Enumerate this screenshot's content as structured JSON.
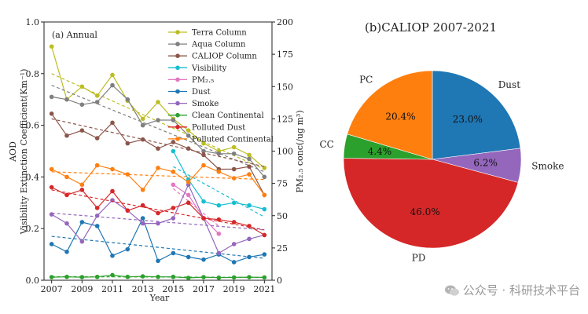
{
  "chart_data": [
    {
      "type": "line",
      "panel_label": "(a) Annual",
      "xlabel": "Year",
      "ylabel_outer": "AOD",
      "ylabel_inner": "Visibility Extinction Coefficient(Km⁻¹)",
      "ylabel_right": "PM₂.₅ conc(/ug m³)",
      "xlim": [
        2006.5,
        2021.5
      ],
      "ylim": [
        0,
        1.0
      ],
      "ylim_right": [
        0,
        200
      ],
      "x_ticks": [
        "2007",
        "2009",
        "2011",
        "2013",
        "2015",
        "2017",
        "2019",
        "2021"
      ],
      "y_ticks": [
        "0.0",
        "0.2",
        "0.4",
        "0.6",
        "0.8",
        "1.0"
      ],
      "y_ticks_right": [
        "0",
        "25",
        "50",
        "75",
        "100",
        "125",
        "150",
        "175",
        "200"
      ],
      "series": [
        {
          "name": "Terra Column",
          "color": "#bcbd22",
          "axis": "left",
          "x": [
            2007,
            2008,
            2009,
            2010,
            2011,
            2012,
            2013,
            2014,
            2015,
            2016,
            2017,
            2018,
            2019,
            2020,
            2021
          ],
          "values": [
            0.905,
            0.7,
            0.75,
            0.715,
            0.795,
            0.695,
            0.625,
            0.69,
            0.625,
            0.58,
            0.53,
            0.5,
            0.515,
            0.485,
            0.435
          ],
          "trend": [
            0.8,
            0.43
          ]
        },
        {
          "name": "Aqua Column",
          "color": "#7f7f7f",
          "axis": "left",
          "x": [
            2007,
            2008,
            2009,
            2010,
            2011,
            2012,
            2013,
            2014,
            2015,
            2016,
            2017,
            2018,
            2019,
            2020,
            2021
          ],
          "values": [
            0.71,
            0.7,
            0.68,
            0.69,
            0.755,
            0.7,
            0.6,
            0.62,
            0.62,
            0.56,
            0.5,
            0.49,
            0.49,
            0.47,
            0.4
          ],
          "trend": [
            0.755,
            0.42
          ]
        },
        {
          "name": "CALIOP Column",
          "color": "#8c564b",
          "axis": "left",
          "x": [
            2007,
            2008,
            2009,
            2010,
            2011,
            2012,
            2013,
            2014,
            2015,
            2016,
            2017,
            2018,
            2019,
            2020,
            2021
          ],
          "values": [
            0.645,
            0.56,
            0.58,
            0.55,
            0.61,
            0.53,
            0.545,
            0.51,
            0.535,
            0.51,
            0.485,
            0.43,
            0.43,
            0.44,
            0.33
          ],
          "trend": [
            0.625,
            0.44
          ]
        },
        {
          "name": "Visibility",
          "color": "#17becf",
          "axis": "left",
          "x": [
            2015,
            2016,
            2017,
            2018,
            2019,
            2020,
            2021
          ],
          "values": [
            0.5,
            0.39,
            0.305,
            0.29,
            0.3,
            0.29,
            0.275
          ],
          "trend": [
            0.44,
            0.245
          ]
        },
        {
          "name": "PM₂.₅",
          "color": "#e377c2",
          "axis": "right",
          "x": [
            2015,
            2016,
            2017,
            2018
          ],
          "values": [
            74,
            66,
            48,
            36
          ],
          "trend": [
            71,
            42
          ]
        },
        {
          "name": "Dust",
          "color": "#1f77b4",
          "axis": "left",
          "x": [
            2007,
            2008,
            2009,
            2010,
            2011,
            2012,
            2013,
            2014,
            2015,
            2016,
            2017,
            2018,
            2019,
            2020,
            2021
          ],
          "values": [
            0.14,
            0.11,
            0.225,
            0.21,
            0.095,
            0.12,
            0.24,
            0.075,
            0.105,
            0.09,
            0.08,
            0.1,
            0.07,
            0.09,
            0.1
          ],
          "trend": [
            0.17,
            0.085
          ]
        },
        {
          "name": "Smoke",
          "color": "#9467bd",
          "axis": "left",
          "x": [
            2007,
            2008,
            2009,
            2010,
            2011,
            2012,
            2013,
            2014,
            2015,
            2016,
            2017,
            2018,
            2019,
            2020,
            2021
          ],
          "values": [
            0.255,
            0.22,
            0.15,
            0.25,
            0.31,
            0.27,
            0.22,
            0.22,
            0.24,
            0.37,
            0.24,
            0.105,
            0.14,
            0.16,
            0.175
          ],
          "trend": [
            0.26,
            0.195
          ]
        },
        {
          "name": "Clean Continental",
          "color": "#2ca02c",
          "axis": "left",
          "x": [
            2007,
            2008,
            2009,
            2010,
            2011,
            2012,
            2013,
            2014,
            2015,
            2016,
            2017,
            2018,
            2019,
            2020,
            2021
          ],
          "values": [
            0.012,
            0.013,
            0.012,
            0.013,
            0.02,
            0.013,
            0.015,
            0.013,
            0.013,
            0.009,
            0.012,
            0.01,
            0.011,
            0.012,
            0.011
          ],
          "trend": [
            0.014,
            0.011
          ]
        },
        {
          "name": "Polluted Dust",
          "color": "#d62728",
          "axis": "left",
          "x": [
            2007,
            2008,
            2009,
            2010,
            2011,
            2012,
            2013,
            2014,
            2015,
            2016,
            2017,
            2018,
            2019,
            2020,
            2021
          ],
          "values": [
            0.36,
            0.33,
            0.35,
            0.28,
            0.345,
            0.27,
            0.29,
            0.26,
            0.28,
            0.3,
            0.24,
            0.235,
            0.225,
            0.21,
            0.175
          ],
          "trend": [
            0.35,
            0.195
          ]
        },
        {
          "name": "Polluted Continental",
          "color": "#ff7f0e",
          "axis": "left",
          "x": [
            2007,
            2008,
            2009,
            2010,
            2011,
            2012,
            2013,
            2014,
            2015,
            2016,
            2017,
            2018,
            2019,
            2020,
            2021
          ],
          "values": [
            0.43,
            0.4,
            0.37,
            0.445,
            0.43,
            0.41,
            0.35,
            0.435,
            0.42,
            0.38,
            0.445,
            0.42,
            0.395,
            0.41,
            0.33
          ],
          "trend": [
            0.42,
            0.39
          ]
        }
      ]
    },
    {
      "type": "pie",
      "title": "(b)CALIOP 2007-2021",
      "slices": [
        {
          "label": "Dust",
          "value": 23.0,
          "pct": "23.0%",
          "color": "#1f77b4"
        },
        {
          "label": "Smoke",
          "value": 6.2,
          "pct": "6.2%",
          "color": "#9467bd"
        },
        {
          "label": "PD",
          "value": 46.0,
          "pct": "46.0%",
          "color": "#d62728"
        },
        {
          "label": "CC",
          "value": 4.4,
          "pct": "4.4%",
          "color": "#2ca02c"
        },
        {
          "label": "PC",
          "value": 20.4,
          "pct": "20.4%",
          "color": "#ff7f0e"
        }
      ]
    }
  ],
  "watermark": {
    "text": "公众号 · 科研技术平台",
    "icon": "wechat-icon"
  }
}
